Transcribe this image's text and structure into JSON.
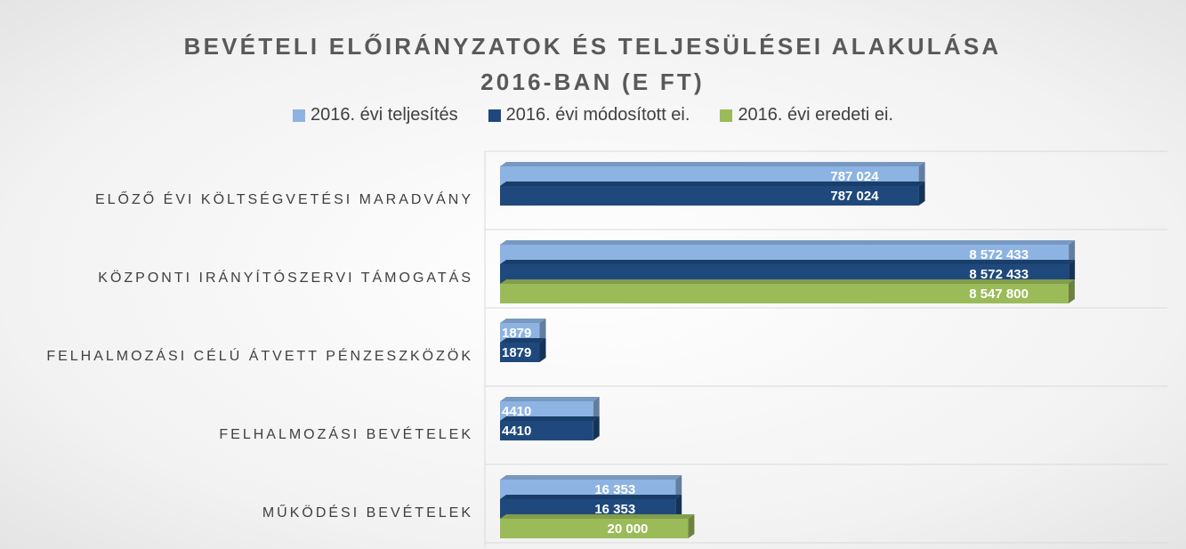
{
  "chart_data": {
    "type": "bar",
    "orientation": "horizontal",
    "title": "BEVÉTELI ELŐIRÁNYZATOK ÉS TELJESÜLÉSEI ALAKULÁSA 2016-BAN (E FT)",
    "categories": [
      "ELŐZŐ ÉVI KÖLTSÉGVETÉSI MARADVÁNY",
      "KÖZPONTI IRÁNYÍTÓSZERVI TÁMOGATÁS",
      "FELHALMOZÁSI CÉLÚ ÁTVETT PÉNZESZKÖZÖK",
      "FELHALMOZÁSI BEVÉTELEK",
      "MŰKÖDÉSI BEVÉTELEK"
    ],
    "series": [
      {
        "name": "2016. évi teljesítés",
        "color": "#8db3e2",
        "values": [
          787024,
          8572433,
          1879,
          4410,
          16353
        ],
        "value_labels": [
          "787 024",
          "8 572 433",
          "1879",
          "4410",
          "16 353"
        ]
      },
      {
        "name": "2016. évi módosított ei.",
        "color": "#1f497d",
        "values": [
          787024,
          8572433,
          1879,
          4410,
          16353
        ],
        "value_labels": [
          "787 024",
          "8 572 433",
          "1879",
          "4410",
          "16 353"
        ]
      },
      {
        "name": "2016. évi eredeti ei.",
        "color": "#9bbb59",
        "values": [
          null,
          8547800,
          null,
          null,
          20000
        ],
        "value_labels": [
          null,
          "8 547 800",
          null,
          null,
          "20 000"
        ]
      }
    ],
    "xlim": [
      1000,
      10000000
    ],
    "log_scale": true,
    "legend": "top"
  }
}
